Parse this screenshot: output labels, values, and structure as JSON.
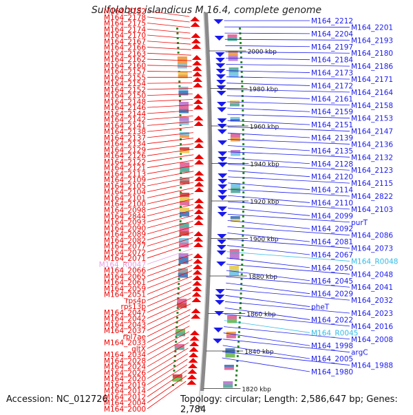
{
  "title": "Sulfolobus islandicus M.16.4, complete genome",
  "accession": "Accession: NC_012726",
  "topology_info": "Topology: circular; Length: 2,586,647 bp; Genes: 2,784",
  "scale_ticks": [
    "2000 kbp",
    "1980 kbp",
    "1960 kbp",
    "1940 kbp",
    "1920 kbp",
    "1900 kbp",
    "1880 kbp",
    "1860 kbp",
    "1840 kbp",
    "1820 kbp"
  ],
  "left_labels": [
    "M164_2182",
    "M164_2178",
    "M164_2175",
    "M164_2174",
    "M164_2170",
    "M164_2167",
    "M164_2166",
    "M164_2163",
    "M164_2162",
    "M164_2160",
    "M164_2157",
    "M164_2155",
    "M164_2154",
    "M164_2152",
    "M164_2150",
    "M164_2148",
    "M164_2146",
    "M164_2144",
    "M164_2142",
    "M164_2141",
    "M164_2138",
    "M164_2137",
    "M164_2134",
    "M164_2129",
    "M164_2126",
    "M164_2122",
    "M164_2121",
    "M164_2113",
    "M164_2109",
    "M164_2105",
    "M164_2104",
    "M164_2101",
    "M164_2100",
    "M164_2098",
    "M164_2844",
    "M164_2093",
    "M164_2090",
    "M164_2089",
    "M164_2082",
    "M164_2077",
    "M164_2072",
    "M164_2071",
    "M164_R0047",
    "M164_2066",
    "M164_2065",
    "M164_2061",
    "M164_2059",
    "M164_2051",
    "rps4p",
    "rps13p",
    "M164_2047",
    "M164_2042",
    "M164_2043",
    "M164_2037",
    "rpl7ae",
    "M164_2033",
    "gltX",
    "M164_2034",
    "M164_2028",
    "M164_2024",
    "M164_2026",
    "M164_2020",
    "M164_2019",
    "M164_2014",
    "M164_2012",
    "M164_2004",
    "M164_2000"
  ],
  "right_labels": [
    "M164_2212",
    "M164_2201",
    "M164_2204",
    "M164_2193",
    "M164_2197",
    "M164_2180",
    "M164_2184",
    "M164_2186",
    "M164_2173",
    "M164_2171",
    "M164_2172",
    "M164_2164",
    "M164_2161",
    "M164_2158",
    "M164_2159",
    "M164_2153",
    "M164_2151",
    "M164_2147",
    "M164_2139",
    "M164_2136",
    "M164_2135",
    "M164_2132",
    "M164_2128",
    "M164_2123",
    "M164_2120",
    "M164_2115",
    "M164_2114",
    "M164_2822",
    "M164_2110",
    "M164_2103",
    "M164_2099",
    "purT",
    "M164_2092",
    "M164_2086",
    "M164_2081",
    "M164_2073",
    "M164_2067",
    "M164_R0048",
    "M164_2050",
    "M164_2048",
    "M164_2045",
    "M164_2041",
    "M164_2029",
    "M164_2032",
    "pheT",
    "M164_2023",
    "M164_2022",
    "M164_2016",
    "M164_R0045",
    "M164_2008",
    "M164_1998",
    "argC",
    "M164_2005",
    "M164_1988",
    "M164_1980"
  ],
  "colors": {
    "forward": "#ee0000",
    "reverse": "#1a1aee",
    "rna": "#e9a0e0",
    "rna_right": "#33bbe8",
    "backbone": "#8a8a8a",
    "tick_marker": "#2a8a2a"
  }
}
